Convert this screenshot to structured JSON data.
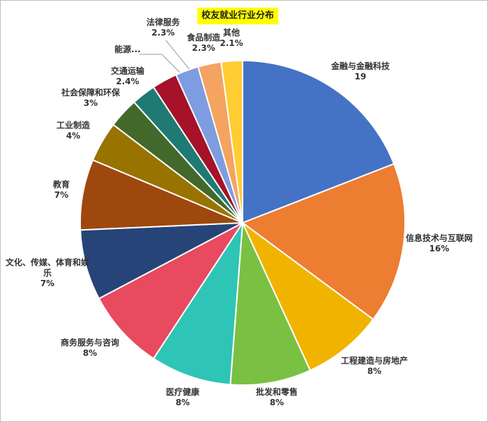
{
  "chart_data": {
    "type": "pie",
    "title": "校友就业行业分布",
    "categories": [
      "金融与金融科技",
      "信息技术与互联网",
      "工程建造与房地产",
      "批发和零售",
      "医疗健康",
      "商务服务与咨询",
      "文化、传媒、体育和娱乐",
      "教育",
      "工业制造",
      "社会保障和环保",
      "交通运输",
      "能源...",
      "法律服务",
      "食品制造",
      "其他"
    ],
    "values": [
      19,
      16,
      8,
      8,
      8,
      8,
      7,
      7,
      4,
      3,
      2.4,
      2.5,
      2.3,
      2.3,
      2.1
    ],
    "value_labels": [
      "19",
      "16%",
      "8%",
      "8%",
      "8%",
      "8%",
      "7%",
      "7%",
      "4%",
      "3%",
      "2.4%",
      null,
      "2.3%",
      "2.3%",
      "2.1%"
    ],
    "colors": [
      "#4472c4",
      "#ed7d31",
      "#f0b400",
      "#7ac043",
      "#2ec4b6",
      "#e84a5f",
      "#264478",
      "#9e480e",
      "#997300",
      "#43682b",
      "#1f7a74",
      "#a5122a",
      "#7e9de0",
      "#f4a460",
      "#ffcc33"
    ]
  }
}
